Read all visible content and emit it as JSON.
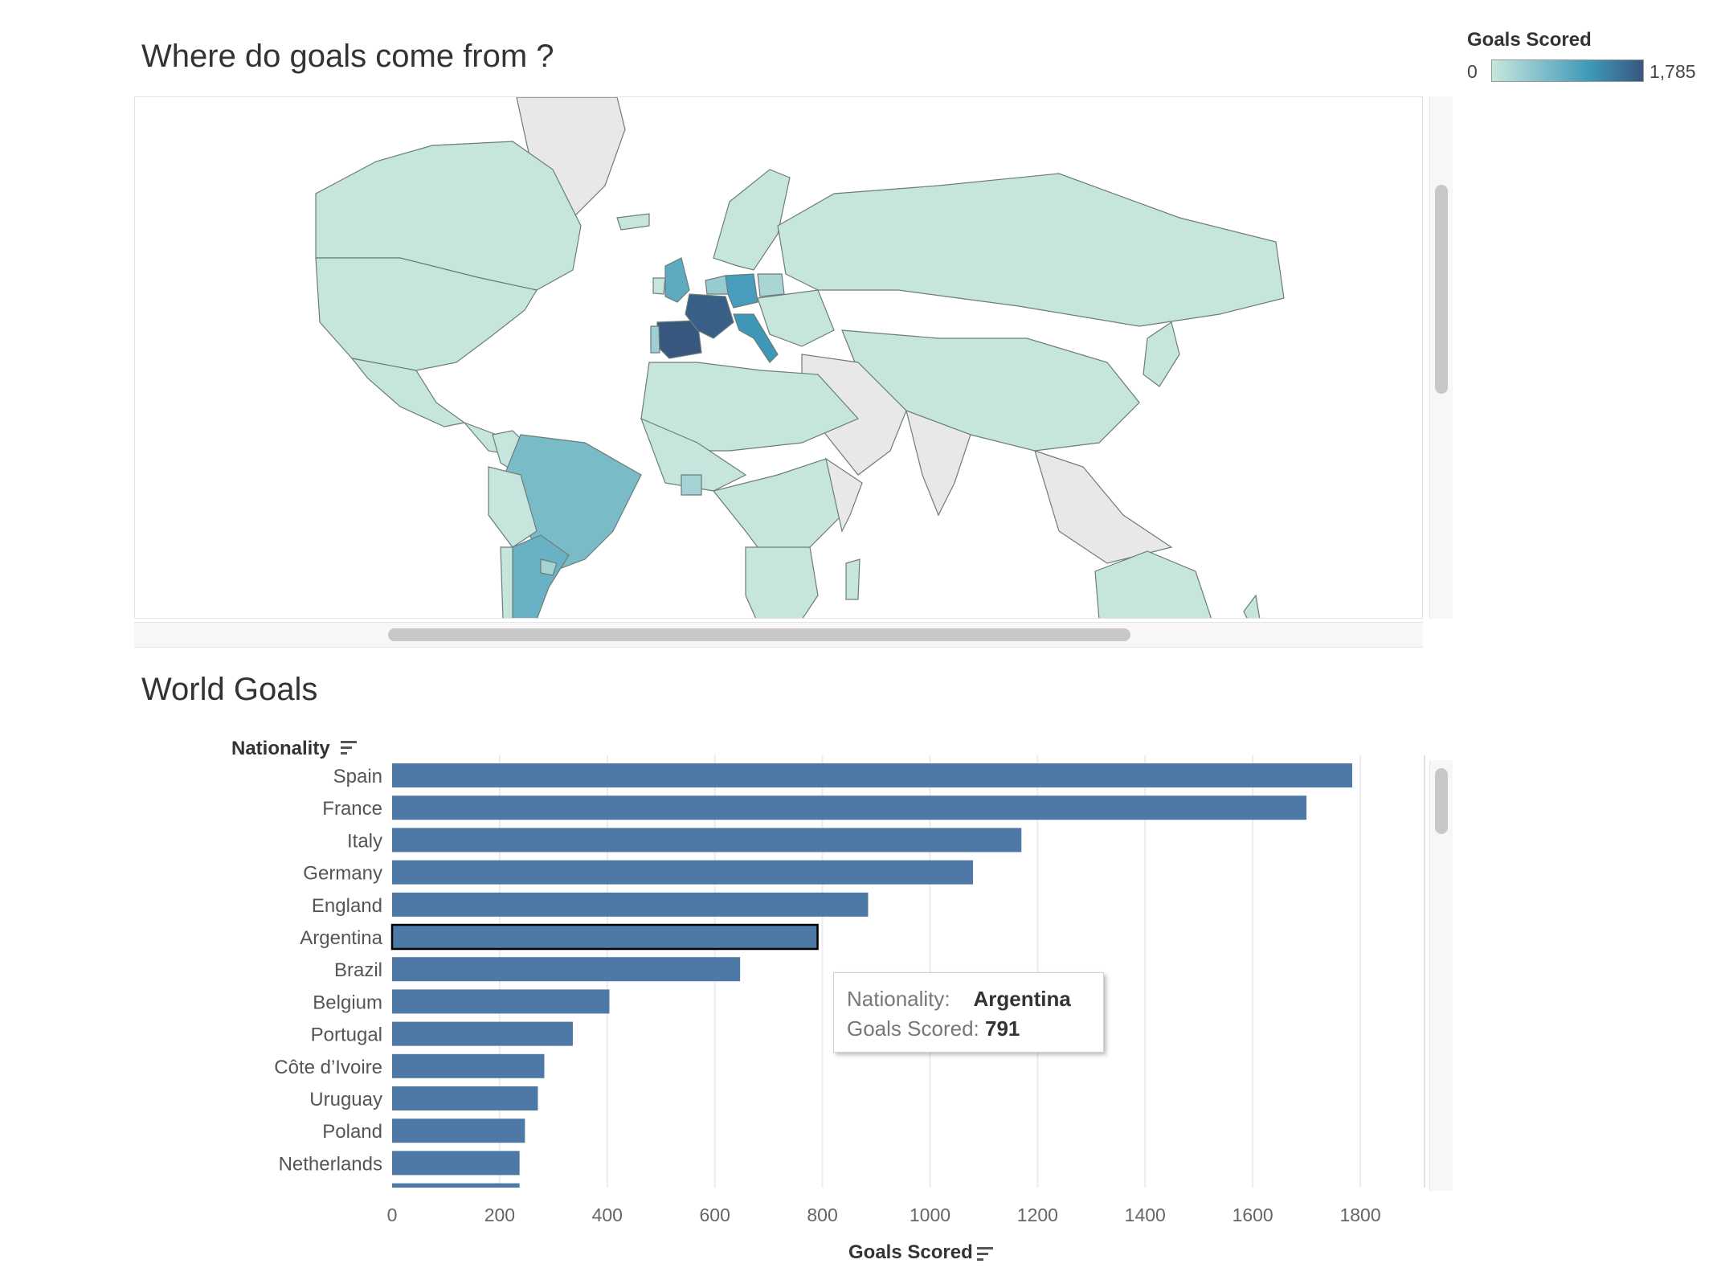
{
  "map": {
    "title": "Where do goals come from ?",
    "legend": {
      "title": "Goals Scored",
      "min": "0",
      "max": "1,785",
      "colors": [
        "#c6e6dd",
        "#3e98b8",
        "#37577f"
      ]
    },
    "colors": {
      "ocean": "#ffffff",
      "no_data": "#e8e8e8",
      "border": "#6c7c78"
    }
  },
  "bar": {
    "title": "World Goals",
    "nationality_header": "Nationality",
    "xlabel": "Goals Scored",
    "bar_color": "#4e79a7",
    "selected_outline": "#000000"
  },
  "tooltip": {
    "nat_key": "Nationality:",
    "nat_val": "Argentina",
    "goals_key": "Goals Scored:",
    "goals_val": "791"
  },
  "chart_data": [
    {
      "type": "bar",
      "orientation": "horizontal",
      "title": "World Goals",
      "xlabel": "Goals Scored",
      "ylabel": "Nationality",
      "categories": [
        "Spain",
        "France",
        "Italy",
        "Germany",
        "England",
        "Argentina",
        "Brazil",
        "Belgium",
        "Portugal",
        "Côte d’Ivoire",
        "Uruguay",
        "Poland",
        "Netherlands"
      ],
      "values": [
        1785,
        1700,
        1170,
        1080,
        885,
        791,
        647,
        404,
        336,
        283,
        271,
        247,
        237
      ],
      "partially_visible_next_value": 237,
      "selected": "Argentina",
      "xlim": [
        0,
        1900
      ],
      "xticks": [
        0,
        200,
        400,
        600,
        800,
        1000,
        1200,
        1400,
        1600,
        1800
      ],
      "grid": "vertical"
    },
    {
      "type": "heatmap",
      "subtype": "choropleth",
      "title": "Where do goals come from ?",
      "value": "Goals Scored",
      "range": [
        0,
        1785
      ],
      "countries": [
        {
          "name": "Spain",
          "value": 1785
        },
        {
          "name": "France",
          "value": 1700
        },
        {
          "name": "Italy",
          "value": 1170
        },
        {
          "name": "Germany",
          "value": 1080
        },
        {
          "name": "England",
          "value": 885
        },
        {
          "name": "Argentina",
          "value": 791
        },
        {
          "name": "Brazil",
          "value": 647
        },
        {
          "name": "Belgium",
          "value": 404
        },
        {
          "name": "Portugal",
          "value": 336
        },
        {
          "name": "Côte d’Ivoire",
          "value": 283
        },
        {
          "name": "Uruguay",
          "value": 271
        },
        {
          "name": "Poland",
          "value": 247
        },
        {
          "name": "Netherlands",
          "value": 237
        }
      ]
    }
  ]
}
